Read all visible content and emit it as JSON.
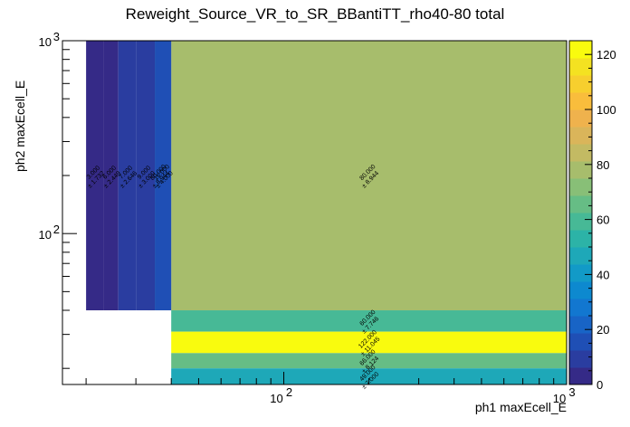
{
  "chart_data": {
    "type": "heatmap",
    "title": "Reweight_Source_VR_to_SR_BBantiTT_rho40-80 total",
    "xlabel": "ph1 maxEcell_E",
    "ylabel": "ph2 maxEcell_E",
    "xscale": "log",
    "yscale": "log",
    "xlim": [
      16.5,
      1000
    ],
    "ylim": [
      16.5,
      1000
    ],
    "x_ticks": [
      {
        "label": "10",
        "sup": "2",
        "value": 100
      },
      {
        "label": "10",
        "sup": "3",
        "value": 1000
      }
    ],
    "y_ticks": [
      {
        "label": "10",
        "sup": "2",
        "value": 100
      },
      {
        "label": "10",
        "sup": "3",
        "value": 1000
      }
    ],
    "colorbar": {
      "min": 0,
      "max": 125,
      "ticks": [
        0,
        20,
        40,
        60,
        80,
        100,
        120
      ]
    },
    "palette": [
      "#352a87",
      "#2a3da0",
      "#1f4fb5",
      "#1864c6",
      "#1277d0",
      "#0d89cf",
      "#129ac7",
      "#1ea8b8",
      "#2cb3a7",
      "#47b996",
      "#66bd85",
      "#88bf77",
      "#a7bd6c",
      "#c3ba63",
      "#dab55a",
      "#efb24d",
      "#f9bd3c",
      "#f7cf2e",
      "#f4e221",
      "#f9fb0e"
    ],
    "cells": [
      {
        "x": [
          33,
          40
        ],
        "y": [
          40,
          1000
        ],
        "value": 80,
        "label": "80.000",
        "err": "± 8.944",
        "text_at": [
          600,
          300
        ]
      },
      {
        "x": [
          40,
          1000
        ],
        "y": [
          40,
          1000
        ],
        "value": 80,
        "label": "80.000",
        "err": "± 8.944"
      },
      {
        "x": [
          40,
          1000
        ],
        "y": [
          31,
          40
        ],
        "value": 60,
        "label": "60.000",
        "err": "± 7.746"
      },
      {
        "x": [
          40,
          1000
        ],
        "y": [
          24,
          31
        ],
        "value": 122,
        "label": "122.000",
        "err": "± 11.045"
      },
      {
        "x": [
          40,
          1000
        ],
        "y": [
          20,
          24
        ],
        "value": 66,
        "label": "66.000",
        "err": "± 8.124"
      },
      {
        "x": [
          40,
          1000
        ],
        "y": [
          16.5,
          20
        ],
        "value": 49,
        "label": "49.000",
        "err": "± 7.000"
      },
      {
        "x": [
          20,
          23
        ],
        "y": [
          40,
          1000
        ],
        "value": 3,
        "label": "3.000",
        "err": "± 1.732"
      },
      {
        "x": [
          23,
          26
        ],
        "y": [
          40,
          1000
        ],
        "value": 6,
        "label": "6.000",
        "err": "± 2.449"
      },
      {
        "x": [
          26,
          30
        ],
        "y": [
          40,
          1000
        ],
        "value": 7,
        "label": "7.000",
        "err": "± 2.646"
      },
      {
        "x": [
          30,
          35
        ],
        "y": [
          40,
          1000
        ],
        "value": 9,
        "label": "9.000",
        "err": "± 3.000"
      },
      {
        "x": [
          35,
          40
        ],
        "y": [
          40,
          1000
        ],
        "value": 16,
        "label": "16.000",
        "err": "± 4.000"
      }
    ]
  }
}
